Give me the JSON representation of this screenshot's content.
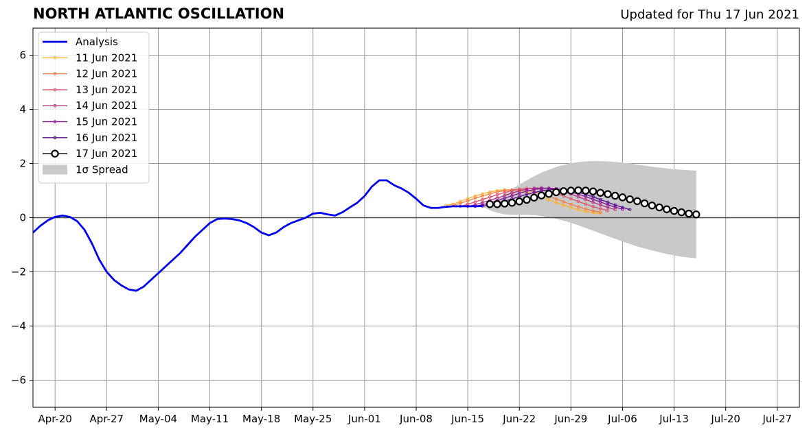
{
  "title": "NORTH ATLANTIC OSCILLATION",
  "updated": "Updated for Thu 17 Jun 2021",
  "chart_data": {
    "type": "line",
    "title": "NORTH ATLANTIC OSCILLATION",
    "xlabel": "",
    "ylabel": "",
    "x_axis": {
      "type": "date",
      "range": [
        "2021-04-17",
        "2021-07-30"
      ],
      "ticks": [
        "2021-04-20",
        "2021-04-27",
        "2021-05-04",
        "2021-05-11",
        "2021-05-18",
        "2021-05-25",
        "2021-06-01",
        "2021-06-08",
        "2021-06-15",
        "2021-06-22",
        "2021-06-29",
        "2021-07-06",
        "2021-07-13",
        "2021-07-20",
        "2021-07-27"
      ],
      "tick_labels": [
        "Apr-20",
        "Apr-27",
        "May-04",
        "May-11",
        "May-18",
        "May-25",
        "Jun-01",
        "Jun-08",
        "Jun-15",
        "Jun-22",
        "Jun-29",
        "Jul-06",
        "Jul-13",
        "Jul-20",
        "Jul-27"
      ]
    },
    "y_axis": {
      "range": [
        -7,
        7
      ],
      "ticks": [
        -6,
        -4,
        -2,
        0,
        2,
        4,
        6
      ],
      "tick_labels": [
        "−6",
        "−4",
        "−2",
        "0",
        "2",
        "4",
        "6"
      ]
    },
    "grid": true,
    "zero_line": true,
    "legend_position": "top-left",
    "legend": [
      "Analysis",
      "11 Jun 2021",
      "12 Jun 2021",
      "13 Jun 2021",
      "14 Jun 2021",
      "15 Jun 2021",
      "16 Jun 2021",
      "17 Jun 2021",
      "1σ Spread"
    ],
    "series": [
      {
        "name": "Analysis",
        "color": "#0000ee",
        "start": "2021-04-17",
        "values": [
          -0.55,
          -0.3,
          -0.1,
          0.03,
          0.08,
          0.03,
          -0.13,
          -0.45,
          -0.95,
          -1.55,
          -2.0,
          -2.3,
          -2.5,
          -2.65,
          -2.7,
          -2.55,
          -2.3,
          -2.05,
          -1.8,
          -1.55,
          -1.3,
          -1.0,
          -0.7,
          -0.45,
          -0.2,
          -0.05,
          -0.03,
          -0.05,
          -0.1,
          -0.2,
          -0.35,
          -0.55,
          -0.65,
          -0.55,
          -0.35,
          -0.2,
          -0.1,
          0.0,
          0.15,
          0.18,
          0.12,
          0.08,
          0.2,
          0.38,
          0.55,
          0.8,
          1.15,
          1.38,
          1.38,
          1.2,
          1.08,
          0.92,
          0.7,
          0.45,
          0.36,
          0.36,
          0.4,
          0.42,
          0.42,
          0.42,
          0.42,
          0.43
        ]
      },
      {
        "name": "11 Jun 2021",
        "color": "#fbb33a",
        "start": "2021-06-12",
        "values": [
          0.45,
          0.5,
          0.6,
          0.7,
          0.8,
          0.88,
          0.95,
          1.0,
          1.03,
          1.03,
          1.0,
          0.94,
          0.86,
          0.76,
          0.66,
          0.56,
          0.46,
          0.37,
          0.29,
          0.23,
          0.18,
          0.15
        ]
      },
      {
        "name": "12 Jun 2021",
        "color": "#f3804a",
        "start": "2021-06-13",
        "values": [
          0.45,
          0.53,
          0.62,
          0.72,
          0.8,
          0.88,
          0.95,
          1.0,
          1.03,
          1.04,
          1.02,
          0.96,
          0.88,
          0.79,
          0.69,
          0.59,
          0.49,
          0.4,
          0.32,
          0.25,
          0.2
        ]
      },
      {
        "name": "13 Jun 2021",
        "color": "#de5771",
        "start": "2021-06-14",
        "values": [
          0.42,
          0.5,
          0.58,
          0.67,
          0.76,
          0.85,
          0.93,
          1.0,
          1.05,
          1.08,
          1.08,
          1.04,
          0.98,
          0.9,
          0.8,
          0.7,
          0.6,
          0.5,
          0.41,
          0.33,
          0.26
        ]
      },
      {
        "name": "14 Jun 2021",
        "color": "#b53786",
        "start": "2021-06-15",
        "values": [
          0.42,
          0.48,
          0.56,
          0.64,
          0.73,
          0.82,
          0.91,
          0.99,
          1.05,
          1.09,
          1.1,
          1.08,
          1.03,
          0.96,
          0.87,
          0.77,
          0.67,
          0.57,
          0.47,
          0.38,
          0.3
        ]
      },
      {
        "name": "15 Jun 2021",
        "color": "#8a1a9b",
        "start": "2021-06-16",
        "values": [
          0.42,
          0.48,
          0.55,
          0.63,
          0.72,
          0.81,
          0.9,
          0.98,
          1.04,
          1.08,
          1.09,
          1.07,
          1.02,
          0.95,
          0.87,
          0.78,
          0.68,
          0.58,
          0.48,
          0.39,
          0.31
        ]
      },
      {
        "name": "16 Jun 2021",
        "color": "#5d1090",
        "start": "2021-06-17",
        "values": [
          0.43,
          0.48,
          0.54,
          0.61,
          0.69,
          0.78,
          0.86,
          0.93,
          0.99,
          1.03,
          1.05,
          1.04,
          1.0,
          0.94,
          0.86,
          0.77,
          0.67,
          0.57,
          0.47,
          0.38,
          0.3
        ]
      },
      {
        "name": "17 Jun 2021",
        "color": "#000000",
        "marker": "open-circle",
        "start": "2021-06-18",
        "values": [
          0.5,
          0.5,
          0.52,
          0.55,
          0.6,
          0.66,
          0.74,
          0.82,
          0.88,
          0.94,
          0.98,
          1.0,
          1.01,
          1.0,
          0.97,
          0.92,
          0.87,
          0.81,
          0.75,
          0.68,
          0.61,
          0.53,
          0.45,
          0.38,
          0.31,
          0.25,
          0.2,
          0.15,
          0.12
        ]
      }
    ],
    "spread": {
      "name": "1σ Spread",
      "color": "#c9c9c9",
      "start": "2021-06-17",
      "upper": [
        0.42,
        0.55,
        0.7,
        0.87,
        1.05,
        1.22,
        1.38,
        1.53,
        1.66,
        1.77,
        1.87,
        1.95,
        2.01,
        2.05,
        2.08,
        2.09,
        2.09,
        2.08,
        2.06,
        2.03,
        2.0,
        1.96,
        1.92,
        1.88,
        1.85,
        1.82,
        1.79,
        1.77,
        1.75,
        1.74
      ],
      "lower": [
        0.42,
        0.28,
        0.18,
        0.12,
        0.1,
        0.1,
        0.1,
        0.09,
        0.06,
        0.02,
        -0.04,
        -0.11,
        -0.19,
        -0.28,
        -0.38,
        -0.48,
        -0.58,
        -0.68,
        -0.78,
        -0.88,
        -0.97,
        -1.06,
        -1.14,
        -1.21,
        -1.28,
        -1.34,
        -1.39,
        -1.44,
        -1.47,
        -1.5
      ]
    }
  }
}
